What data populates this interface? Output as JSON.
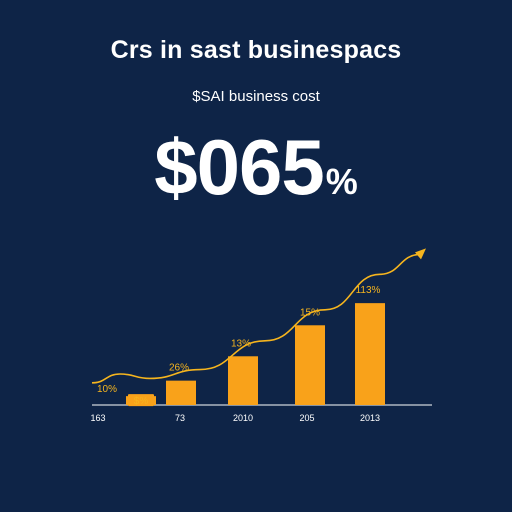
{
  "header": {
    "title": "Crs in sast businespacs",
    "subtitle": "$SAI business cost"
  },
  "headline": {
    "value": "$065",
    "unit": "%"
  },
  "colors": {
    "background": "#0e2447",
    "bar": "#f9a21a",
    "line": "#f6b51e",
    "text": "#ffffff",
    "axis": "#ffffff"
  },
  "chart_data": {
    "type": "bar",
    "categories": [
      "",
      "",
      "",
      "",
      ""
    ],
    "values": [
      4,
      11,
      22,
      36,
      46
    ],
    "data_labels": [
      "$%",
      "26%",
      "13%",
      "15%",
      "113%"
    ],
    "line_values": [
      9,
      16,
      29,
      43,
      59
    ],
    "line_extra_labels": [
      "10%"
    ],
    "x_tick_labels": [
      "163",
      "73",
      "2010",
      "205",
      "2013"
    ],
    "ylim": [
      0,
      70
    ],
    "legend": "none",
    "grid": false
  }
}
